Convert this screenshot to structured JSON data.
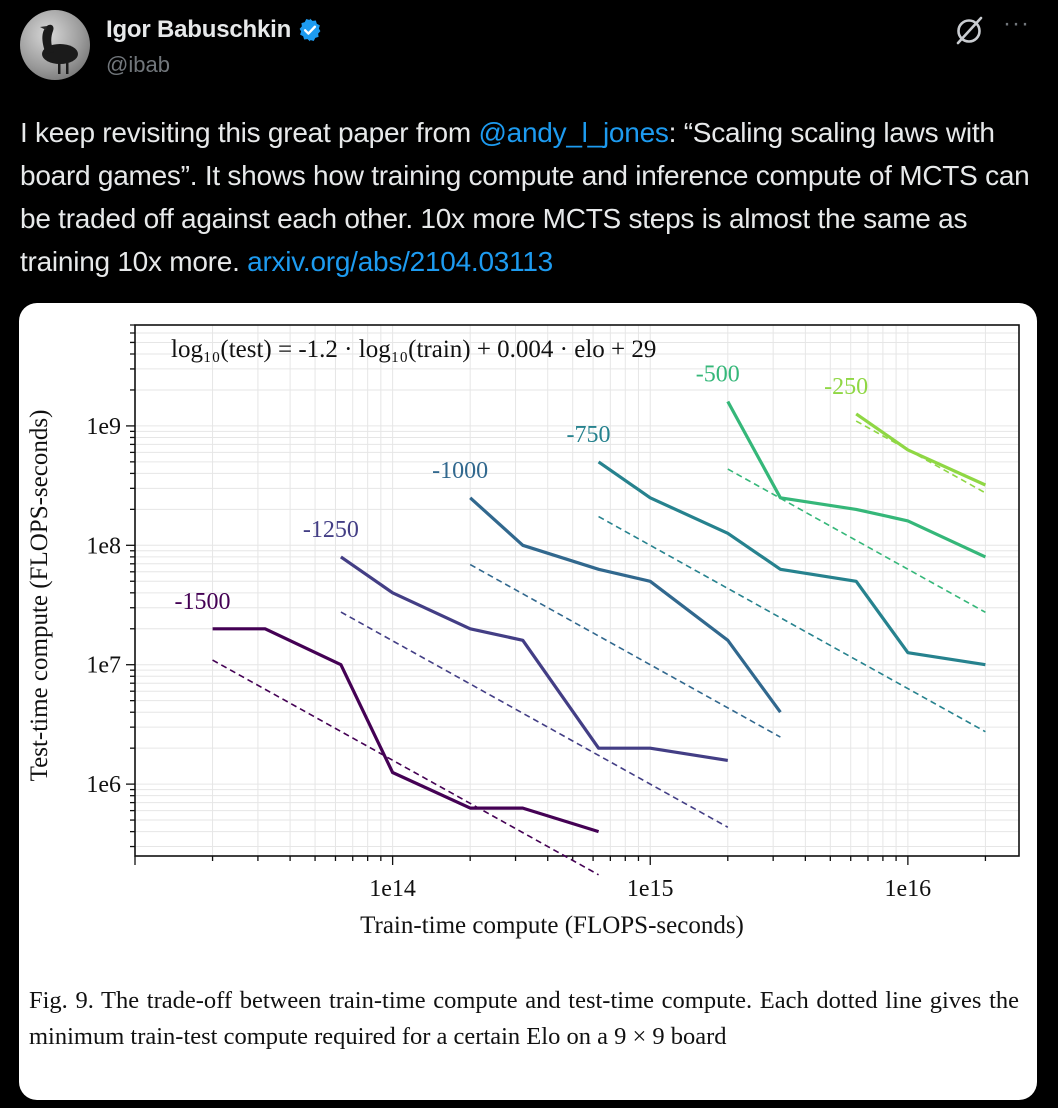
{
  "author": {
    "name": "Igor Babuschkin",
    "handle": "@ibab",
    "verified": true,
    "avatar_icon": "goose-avatar-icon"
  },
  "icons": {
    "grok": "grok-icon",
    "more": "more-options-icon",
    "more_glyph": "···"
  },
  "tweet": {
    "text_part1": "I keep revisiting this great paper from ",
    "mention": "@andy_l_jones",
    "text_part2": ": “Scaling scaling laws with board games”. It shows how training compute and inference compute of MCTS can be traded off against each other. 10x more MCTS steps is almost the same as training 10x more. ",
    "link": "arxiv.org/abs/2104.03113",
    "link_color": "#1d9bf0"
  },
  "chart_data": {
    "type": "line",
    "title": "",
    "equation": "log₁₀(test) = -1.2 · log₁₀(train) + 0.004 · elo + 29",
    "xlabel": "Train-time compute (FLOPS-seconds)",
    "ylabel": "Test-time compute (FLOPS-seconds)",
    "xscale": "log",
    "yscale": "log",
    "xlim": [
      10000000000000.0,
      2.7e+16
    ],
    "ylim": [
      250000.0,
      7000000000.0
    ],
    "xticks": [
      {
        "value": 100000000000000.0,
        "label": "1e14"
      },
      {
        "value": 1000000000000000.0,
        "label": "1e15"
      },
      {
        "value": 1e+16,
        "label": "1e16"
      }
    ],
    "yticks": [
      {
        "value": 1000000.0,
        "label": "1e6"
      },
      {
        "value": 10000000.0,
        "label": "1e7"
      },
      {
        "value": 100000000.0,
        "label": "1e8"
      },
      {
        "value": 1000000000.0,
        "label": "1e9"
      }
    ],
    "grid": true,
    "series": [
      {
        "name": "-1500",
        "elo": -1500,
        "color": "#440154",
        "x": [
          20000000000000.0,
          32000000000000.0,
          63000000000000.0,
          100000000000000.0,
          200000000000000.0,
          320000000000000.0,
          630000000000000.0
        ],
        "y": [
          20000000.0,
          20000000.0,
          10000000.0,
          1250000.0,
          630000.0,
          630000.0,
          400000.0
        ]
      },
      {
        "name": "-1250",
        "elo": -1250,
        "color": "#433e85",
        "x": [
          63000000000000.0,
          100000000000000.0,
          200000000000000.0,
          320000000000000.0,
          630000000000000.0,
          1000000000000000.0,
          2000000000000000.0
        ],
        "y": [
          80000000.0,
          40000000.0,
          20000000.0,
          16000000.0,
          2000000.0,
          2000000.0,
          1580000.0
        ]
      },
      {
        "name": "-1000",
        "elo": -1000,
        "color": "#31688e",
        "x": [
          200000000000000.0,
          320000000000000.0,
          630000000000000.0,
          1000000000000000.0,
          2000000000000000.0,
          3200000000000000.0
        ],
        "y": [
          250000000.0,
          100000000.0,
          63000000.0,
          50000000.0,
          16000000.0,
          4000000.0
        ]
      },
      {
        "name": "-750",
        "elo": -750,
        "color": "#26828e",
        "x": [
          630000000000000.0,
          1000000000000000.0,
          2000000000000000.0,
          3200000000000000.0,
          6300000000000000.0,
          1e+16,
          2e+16
        ],
        "y": [
          500000000.0,
          250000000.0,
          126000000.0,
          63000000.0,
          50000000.0,
          12600000.0,
          10000000.0
        ]
      },
      {
        "name": "-500",
        "elo": -500,
        "color": "#35b779",
        "x": [
          2000000000000000.0,
          3200000000000000.0,
          6300000000000000.0,
          1e+16,
          2e+16
        ],
        "y": [
          1600000000.0,
          250000000.0,
          200000000.0,
          160000000.0,
          80000000.0
        ]
      },
      {
        "name": "-250",
        "elo": -250,
        "color": "#8fd744",
        "x": [
          6300000000000000.0,
          1e+16,
          2e+16
        ],
        "y": [
          1260000000.0,
          630000000.0,
          320000000.0
        ]
      }
    ],
    "fit_lines": [
      {
        "elo": -1500,
        "color": "#440154",
        "x": [
          20000000000000.0,
          630000000000000.0
        ]
      },
      {
        "elo": -1250,
        "color": "#433e85",
        "x": [
          63000000000000.0,
          2000000000000000.0
        ]
      },
      {
        "elo": -1000,
        "color": "#31688e",
        "x": [
          200000000000000.0,
          3200000000000000.0
        ]
      },
      {
        "elo": -750,
        "color": "#26828e",
        "x": [
          630000000000000.0,
          2e+16
        ]
      },
      {
        "elo": -500,
        "color": "#35b779",
        "x": [
          2000000000000000.0,
          2e+16
        ]
      },
      {
        "elo": -250,
        "color": "#8fd744",
        "x": [
          6300000000000000.0,
          2e+16
        ]
      }
    ],
    "fit": {
      "slope": -1.2,
      "elo_coef": 0.004,
      "intercept": 29
    }
  },
  "caption": "Fig. 9.  The trade-off between train-time compute and test-time compute. Each dotted line gives the minimum train-test compute required for a certain Elo on a 9 × 9 board"
}
